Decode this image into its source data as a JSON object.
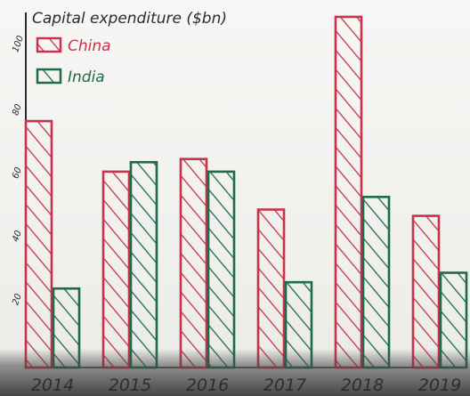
{
  "chart_data": {
    "type": "bar",
    "title": "Capital expenditure ($bn)",
    "xlabel": "",
    "ylabel": "",
    "categories": [
      "2014",
      "2015",
      "2016",
      "2017",
      "2018",
      "2019"
    ],
    "series": [
      {
        "name": "China",
        "values": [
          78,
          62,
          66,
          50,
          111,
          48
        ]
      },
      {
        "name": "India",
        "values": [
          25,
          65,
          62,
          27,
          54,
          30
        ]
      }
    ],
    "yticks": [
      20,
      40,
      "60",
      "80",
      "100"
    ],
    "ylim": [
      0,
      115
    ],
    "legend_position": "top-left"
  },
  "colors": {
    "china": "#c8324a",
    "india": "#1d6b4b",
    "ink": "#2a2a35",
    "background": "#f3f3f1"
  }
}
